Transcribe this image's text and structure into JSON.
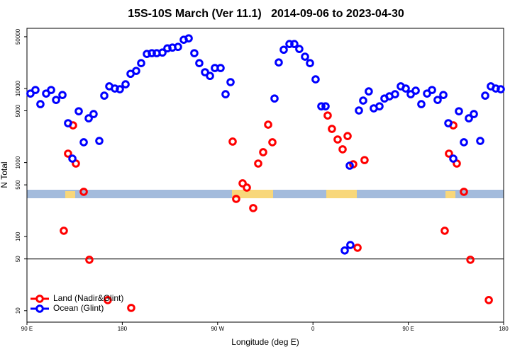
{
  "chart_data": {
    "type": "scatter",
    "title": "15S-10S March (Ver 11.1)   2014-09-06 to 2023-04-30",
    "x_label": "Longitude (deg E)",
    "y_label": "N Total",
    "xlim": [
      90,
      540
    ],
    "xticks": [
      {
        "value": 90,
        "label": "90 E"
      },
      {
        "value": 180,
        "label": "180"
      },
      {
        "value": 270,
        "label": "90 W"
      },
      {
        "value": 360,
        "label": "0"
      },
      {
        "value": 450,
        "label": "90 E"
      },
      {
        "value": 540,
        "label": "180"
      }
    ],
    "ylim": [
      7,
      65000
    ],
    "yticks": [
      10,
      50,
      100,
      500,
      1000,
      5000,
      10000,
      50000
    ],
    "log_y": true,
    "hline": 50,
    "legend": "bottom-left",
    "series": [
      {
        "name": "Land (Nadir&Glint)",
        "color": "#ff0000",
        "x": [
          124.8,
          128.8,
          133.5,
          136.2,
          143.6,
          148.9,
          166.3,
          188.4,
          284.2,
          287.5,
          293.6,
          297.6,
          303.6,
          308.3,
          313.0,
          317.7,
          321.7,
          373.9,
          377.9,
          383.3,
          388.0,
          392.7,
          398.0,
          402.1,
          408.7,
          484.4,
          488.4,
          492.5,
          495.8,
          502.5,
          508.6,
          526.0
        ],
        "values": [
          120,
          1320,
          3180,
          970,
          403,
          48.7,
          13.9,
          10.9,
          1920,
          323,
          524,
          459,
          243,
          970,
          1380,
          3250,
          1880,
          4320,
          2850,
          2050,
          1510,
          2280,
          949,
          70.8,
          1080,
          120,
          1320,
          3180,
          970,
          403,
          48.7,
          13.9
        ]
      },
      {
        "name": "Ocean (Glint)",
        "color": "#0000ff",
        "x": [
          93.3,
          98.0,
          102.7,
          108.1,
          112.8,
          117.5,
          123.5,
          128.8,
          132.9,
          138.9,
          143.6,
          148.3,
          152.9,
          158.3,
          163.0,
          167.7,
          173.0,
          177.7,
          183.1,
          187.8,
          193.1,
          197.8,
          203.2,
          207.9,
          212.5,
          217.9,
          222.6,
          227.3,
          232.6,
          238.0,
          242.7,
          248.0,
          252.7,
          258.1,
          262.8,
          267.4,
          272.8,
          277.5,
          282.2,
          323.7,
          327.7,
          332.4,
          337.8,
          342.4,
          347.1,
          352.5,
          357.2,
          362.5,
          367.9,
          371.9,
          390.0,
          394.7,
          395.3,
          403.4,
          407.4,
          412.7,
          417.4,
          422.8,
          427.5,
          432.2,
          437.5,
          442.9,
          447.6,
          452.3,
          457.0,
          462.3,
          467.7,
          472.4,
          477.7,
          483.1,
          487.8,
          492.5,
          497.8,
          502.5,
          507.2,
          511.9,
          517.9,
          522.6,
          527.9,
          532.6,
          537.3
        ],
        "values": [
          8550,
          9550,
          6150,
          8550,
          9550,
          7010,
          8180,
          3400,
          1130,
          4930,
          1880,
          3960,
          4520,
          1960,
          8010,
          10700,
          10000,
          9780,
          11400,
          15800,
          17300,
          22000,
          29300,
          30000,
          30000,
          30600,
          34900,
          35700,
          36500,
          45500,
          47600,
          30000,
          22000,
          16600,
          14800,
          18900,
          18900,
          8370,
          12200,
          7330,
          22500,
          33400,
          39900,
          39900,
          34200,
          26900,
          22000,
          13300,
          5750,
          5750,
          65,
          908,
          77,
          5050,
          6870,
          9140,
          5400,
          5750,
          7330,
          7840,
          8370,
          10700,
          10000,
          8370,
          9350,
          6150,
          8550,
          9550,
          7010,
          8180,
          3400,
          1130,
          4930,
          1880,
          3960,
          4520,
          1960,
          8010,
          10700,
          10000,
          9780
        ]
      }
    ]
  }
}
